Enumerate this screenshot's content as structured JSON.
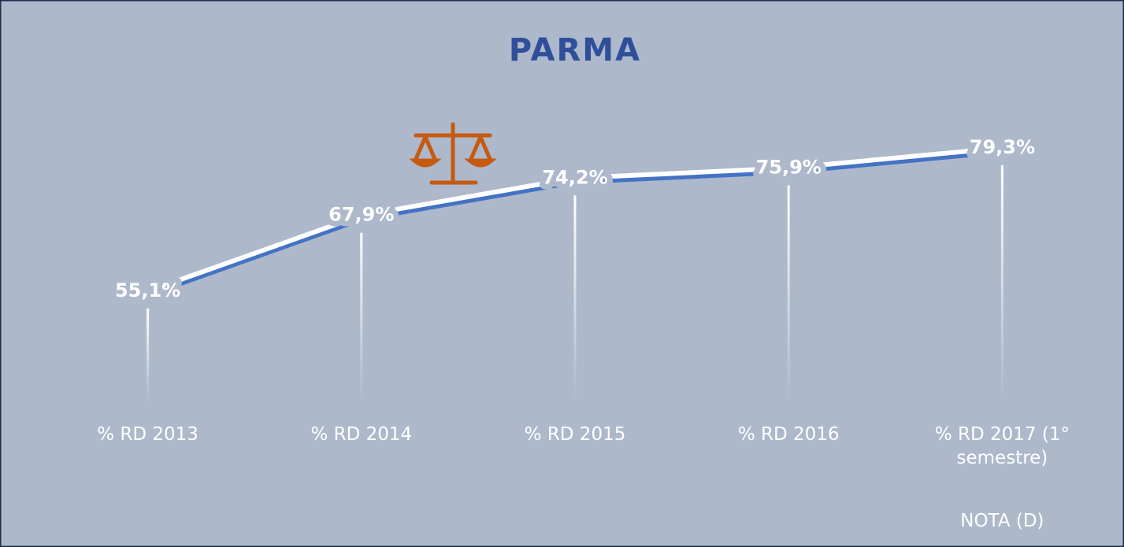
{
  "chart_data": {
    "type": "line",
    "title": "PARMA",
    "categories": [
      "% RD 2013",
      "% RD 2014",
      "% RD 2015",
      "% RD 2016",
      "% RD 2017 (1° semestre)"
    ],
    "values": [
      55.1,
      67.9,
      74.2,
      75.9,
      79.3
    ],
    "value_labels": [
      "55,1%",
      "67,9%",
      "74,2%",
      "75,9%",
      "79,3%"
    ],
    "color": "#4472c4",
    "ylim": [
      30,
      85
    ],
    "annotation": "NOTA (D)"
  }
}
